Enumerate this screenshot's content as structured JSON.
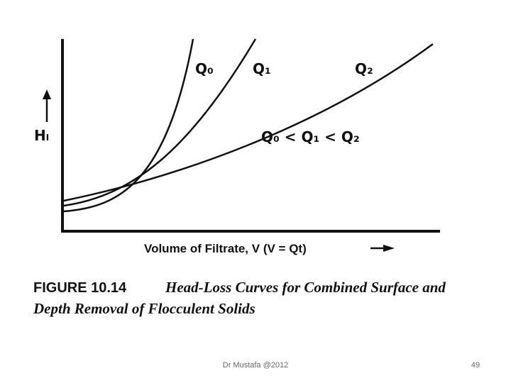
{
  "figure": {
    "curve_labels": [
      "Q₀",
      "Q₁",
      "Q₂"
    ],
    "relation": "Q₀ < Q₁ < Q₂",
    "y_axis_label": "Hₗ",
    "x_axis_label": "Volume of Filtrate, V (V = Qt)",
    "caption_number": "FIGURE 10.14",
    "caption_line_1": "Head-Loss Curves for Combined Surface and",
    "caption_line_2": "Depth Removal of Flocculent Solids"
  },
  "footer": {
    "author": "Dr Mustafa @2012",
    "page": "49"
  }
}
